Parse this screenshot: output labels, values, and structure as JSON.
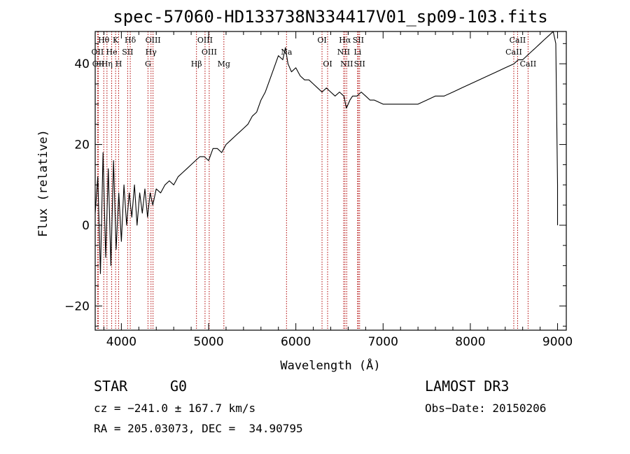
{
  "chart_data": {
    "type": "line",
    "title": "spec-57060-HD133738N334417V01_sp09-103.fits",
    "xlabel": "Wavelength (Å)",
    "ylabel": "Flux (relative)",
    "xlim": [
      3700,
      9100
    ],
    "ylim": [
      -26,
      48
    ],
    "xticks": [
      4000,
      5000,
      6000,
      7000,
      8000,
      9000
    ],
    "yticks": [
      -20,
      0,
      20,
      40
    ],
    "grid": false,
    "series": [
      {
        "color": "#000000",
        "points": [
          [
            3700,
            3
          ],
          [
            3730,
            12
          ],
          [
            3760,
            -12
          ],
          [
            3790,
            18
          ],
          [
            3820,
            -8
          ],
          [
            3850,
            14
          ],
          [
            3880,
            -10
          ],
          [
            3910,
            16
          ],
          [
            3940,
            -6
          ],
          [
            3970,
            8
          ],
          [
            4000,
            -4
          ],
          [
            4030,
            10
          ],
          [
            4060,
            0
          ],
          [
            4090,
            8
          ],
          [
            4120,
            2
          ],
          [
            4150,
            10
          ],
          [
            4180,
            0
          ],
          [
            4210,
            8
          ],
          [
            4240,
            3
          ],
          [
            4270,
            9
          ],
          [
            4300,
            2
          ],
          [
            4330,
            8
          ],
          [
            4360,
            5
          ],
          [
            4400,
            9
          ],
          [
            4450,
            8
          ],
          [
            4500,
            10
          ],
          [
            4550,
            11
          ],
          [
            4600,
            10
          ],
          [
            4650,
            12
          ],
          [
            4700,
            13
          ],
          [
            4750,
            14
          ],
          [
            4800,
            15
          ],
          [
            4850,
            16
          ],
          [
            4900,
            17
          ],
          [
            4950,
            17
          ],
          [
            5000,
            16
          ],
          [
            5050,
            19
          ],
          [
            5100,
            19
          ],
          [
            5150,
            18
          ],
          [
            5200,
            20
          ],
          [
            5250,
            21
          ],
          [
            5300,
            22
          ],
          [
            5350,
            23
          ],
          [
            5400,
            24
          ],
          [
            5450,
            25
          ],
          [
            5500,
            27
          ],
          [
            5550,
            28
          ],
          [
            5600,
            31
          ],
          [
            5650,
            33
          ],
          [
            5700,
            36
          ],
          [
            5750,
            39
          ],
          [
            5800,
            42
          ],
          [
            5850,
            41
          ],
          [
            5880,
            44
          ],
          [
            5910,
            40
          ],
          [
            5950,
            38
          ],
          [
            6000,
            39
          ],
          [
            6050,
            37
          ],
          [
            6100,
            36
          ],
          [
            6150,
            36
          ],
          [
            6200,
            35
          ],
          [
            6250,
            34
          ],
          [
            6300,
            33
          ],
          [
            6350,
            34
          ],
          [
            6400,
            33
          ],
          [
            6450,
            32
          ],
          [
            6500,
            33
          ],
          [
            6550,
            32
          ],
          [
            6580,
            29
          ],
          [
            6620,
            31
          ],
          [
            6650,
            32
          ],
          [
            6700,
            32
          ],
          [
            6750,
            33
          ],
          [
            6800,
            32
          ],
          [
            6850,
            31
          ],
          [
            6900,
            31
          ],
          [
            7000,
            30
          ],
          [
            7100,
            30
          ],
          [
            7200,
            30
          ],
          [
            7300,
            30
          ],
          [
            7400,
            30
          ],
          [
            7500,
            31
          ],
          [
            7600,
            32
          ],
          [
            7700,
            32
          ],
          [
            7800,
            33
          ],
          [
            7900,
            34
          ],
          [
            8000,
            35
          ],
          [
            8100,
            36
          ],
          [
            8200,
            37
          ],
          [
            8300,
            38
          ],
          [
            8400,
            39
          ],
          [
            8500,
            40
          ],
          [
            8550,
            41
          ],
          [
            8600,
            41
          ],
          [
            8650,
            42
          ],
          [
            8700,
            43
          ],
          [
            8750,
            44
          ],
          [
            8800,
            45
          ],
          [
            8850,
            46
          ],
          [
            8900,
            47
          ],
          [
            8950,
            48
          ],
          [
            8980,
            45
          ],
          [
            9000,
            10
          ],
          [
            9000,
            0
          ]
        ]
      }
    ],
    "spectral_lines": [
      {
        "label": "Hθ",
        "wavelength": 3798,
        "row": 0
      },
      {
        "label": "K",
        "wavelength": 3934,
        "row": 0
      },
      {
        "label": "Hδ",
        "wavelength": 4102,
        "row": 0
      },
      {
        "label": "OIII",
        "wavelength": 4363,
        "row": 0
      },
      {
        "label": "OIII",
        "wavelength": 4959,
        "row": 0
      },
      {
        "label": "OI",
        "wavelength": 6300,
        "row": 0
      },
      {
        "label": "Hα",
        "wavelength": 6563,
        "row": 0
      },
      {
        "label": "SII",
        "wavelength": 6716,
        "row": 0
      },
      {
        "label": "CaII",
        "wavelength": 8542,
        "row": 0
      },
      {
        "label": "OII",
        "wavelength": 3727,
        "row": 1
      },
      {
        "label": "He",
        "wavelength": 3889,
        "row": 1
      },
      {
        "label": "SII",
        "wavelength": 4072,
        "row": 1
      },
      {
        "label": "Hγ",
        "wavelength": 4340,
        "row": 1
      },
      {
        "label": "OIII",
        "wavelength": 5007,
        "row": 1
      },
      {
        "label": "Na",
        "wavelength": 5893,
        "row": 1
      },
      {
        "label": "NII",
        "wavelength": 6548,
        "row": 1
      },
      {
        "label": "Li",
        "wavelength": 6708,
        "row": 1
      },
      {
        "label": "CaII",
        "wavelength": 8498,
        "row": 1
      },
      {
        "label": "OII",
        "wavelength": 3737,
        "row": 2
      },
      {
        "label": "Hη",
        "wavelength": 3835,
        "row": 2
      },
      {
        "label": "H",
        "wavelength": 3969,
        "row": 2
      },
      {
        "label": "G",
        "wavelength": 4305,
        "row": 2
      },
      {
        "label": "Hβ",
        "wavelength": 4861,
        "row": 2
      },
      {
        "label": "Mg",
        "wavelength": 5175,
        "row": 2
      },
      {
        "label": "OI",
        "wavelength": 6364,
        "row": 2
      },
      {
        "label": "NII",
        "wavelength": 6583,
        "row": 2
      },
      {
        "label": "SII",
        "wavelength": 6731,
        "row": 2
      },
      {
        "label": "CaII",
        "wavelength": 8662,
        "row": 2
      }
    ],
    "spectral_line_color": "#b00000"
  },
  "info": {
    "object_class": "STAR",
    "subclass": "G0",
    "survey": "LAMOST DR3",
    "redshift": "cz = −241.0 ± 167.7 km/s",
    "obs_date": "Obs−Date: 20150206",
    "coords": "RA = 205.03073, DEC =  34.90795"
  }
}
